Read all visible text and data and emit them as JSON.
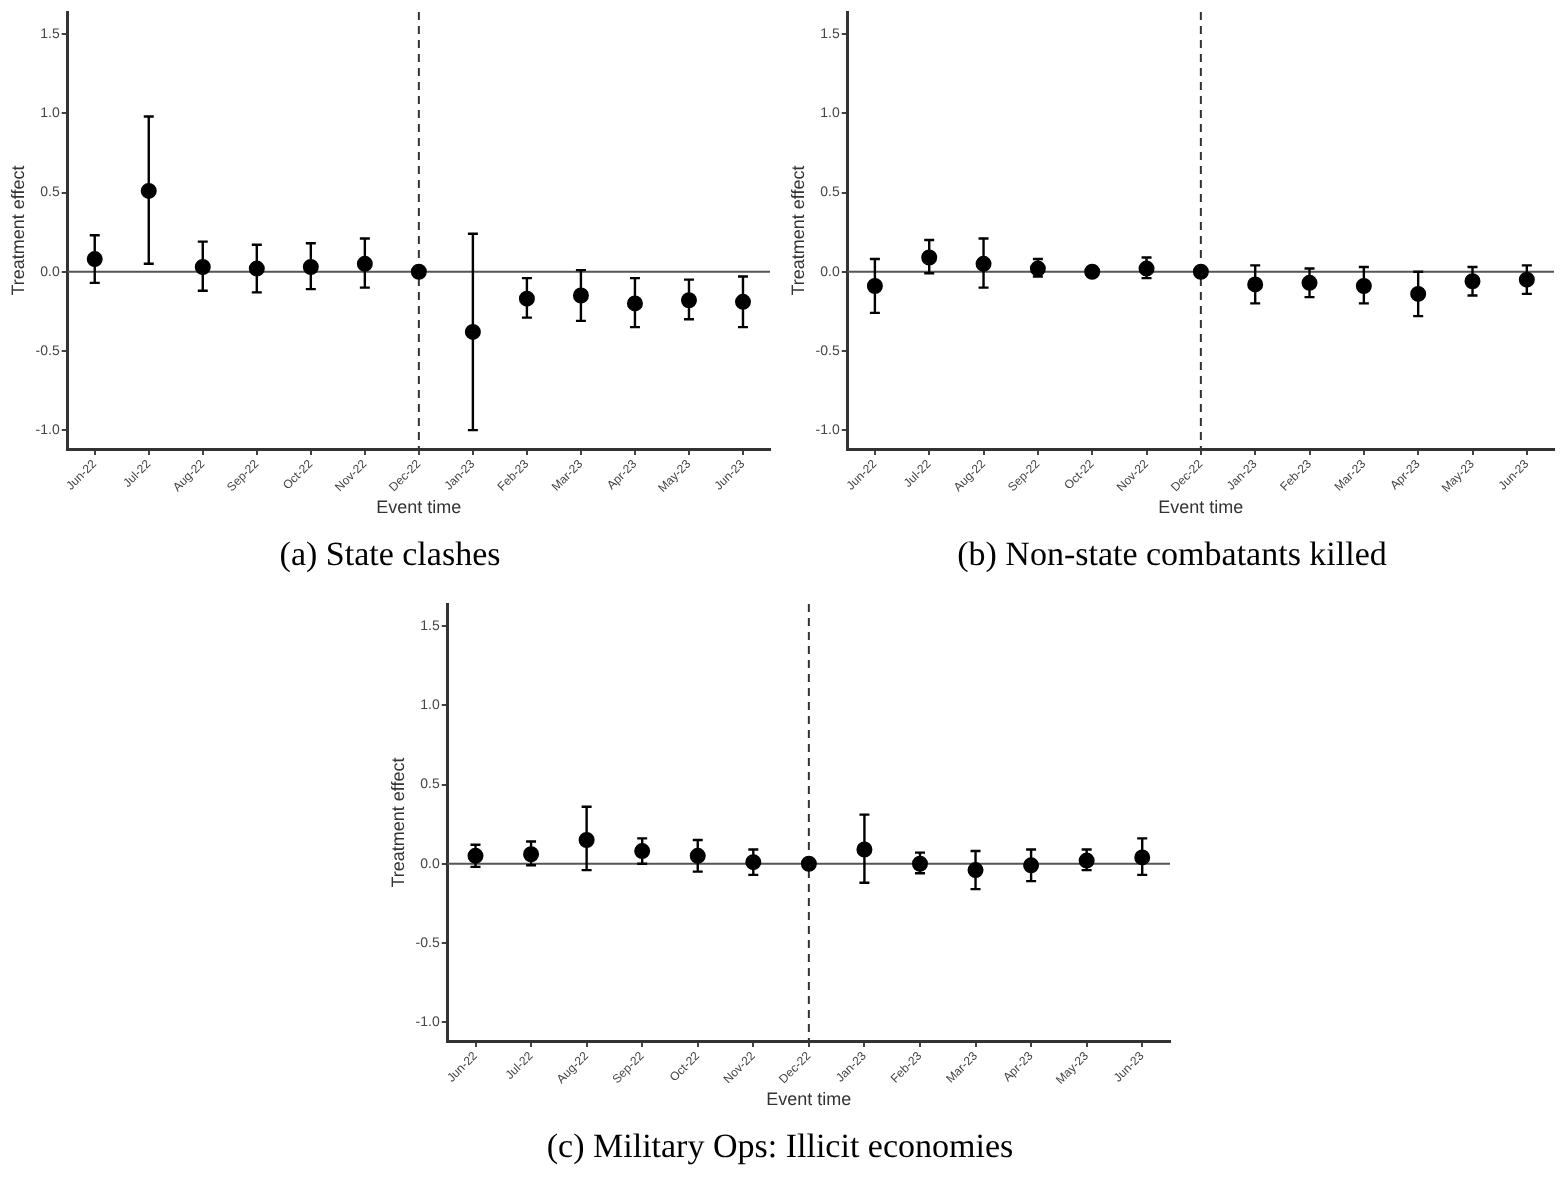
{
  "chart_data": [
    {
      "type": "scatter",
      "title": "(a) State clashes",
      "xlabel": "Event time",
      "ylabel": "Treatment effect",
      "categories": [
        "Jun-22",
        "Jul-22",
        "Aug-22",
        "Sep-22",
        "Oct-22",
        "Nov-22",
        "Dec-22",
        "Jan-23",
        "Feb-23",
        "Mar-23",
        "Apr-23",
        "May-23",
        "Jun-23"
      ],
      "series": [
        {
          "color": "#000000",
          "values": [
            0.08,
            0.51,
            0.03,
            0.02,
            0.03,
            0.05,
            0,
            -0.38,
            -0.17,
            -0.15,
            -0.2,
            -0.18,
            -0.19
          ],
          "errors": [
            [
              -0.07,
              0.23
            ],
            [
              0.05,
              0.98
            ],
            [
              -0.12,
              0.19
            ],
            [
              -0.13,
              0.17
            ],
            [
              -0.11,
              0.18
            ],
            [
              -0.1,
              0.21
            ],
            null,
            [
              -1.0,
              0.24
            ],
            [
              -0.29,
              -0.04
            ],
            [
              -0.31,
              0.01
            ],
            [
              -0.35,
              -0.04
            ],
            [
              -0.3,
              -0.05
            ],
            [
              -0.35,
              -0.03
            ]
          ]
        }
      ],
      "ylim": [
        -1.12,
        1.64
      ],
      "yticks": [
        {
          "value": -1,
          "label": "-1.0"
        },
        {
          "value": -0.5,
          "label": "-0.5"
        },
        {
          "value": 0,
          "label": "0.0"
        },
        {
          "value": 0.5,
          "label": "0.5"
        },
        {
          "value": 1,
          "label": "1.0"
        },
        {
          "value": 1.5,
          "label": "1.5"
        }
      ],
      "ref_lines": [
        {
          "axis": "y",
          "value": 0,
          "color": "#555555",
          "line_style": "solid"
        },
        {
          "axis": "x",
          "value": "Dec-22",
          "color": "#333333",
          "line_style": "dashed"
        }
      ],
      "marker": "circle",
      "grid": false,
      "legend": false
    },
    {
      "type": "scatter",
      "title": "(b) Non-state combatants killed",
      "xlabel": "Event time",
      "ylabel": "Treatment effect",
      "categories": [
        "Jun-22",
        "Jul-22",
        "Aug-22",
        "Sep-22",
        "Oct-22",
        "Nov-22",
        "Dec-22",
        "Jan-23",
        "Feb-23",
        "Mar-23",
        "Apr-23",
        "May-23",
        "Jun-23"
      ],
      "series": [
        {
          "color": "#000000",
          "values": [
            -0.09,
            0.09,
            0.05,
            0.02,
            0,
            0.02,
            0,
            -0.08,
            -0.07,
            -0.09,
            -0.14,
            -0.06,
            -0.05
          ],
          "errors": [
            [
              -0.26,
              0.08
            ],
            [
              -0.01,
              0.2
            ],
            [
              -0.1,
              0.21
            ],
            [
              -0.03,
              0.08
            ],
            null,
            [
              -0.04,
              0.09
            ],
            null,
            [
              -0.2,
              0.04
            ],
            [
              -0.16,
              0.02
            ],
            [
              -0.2,
              0.03
            ],
            [
              -0.28,
              0.0
            ],
            [
              -0.15,
              0.03
            ],
            [
              -0.14,
              0.04
            ]
          ]
        }
      ],
      "ylim": [
        -1.12,
        1.64
      ],
      "yticks": [
        {
          "value": -1,
          "label": "-1.0"
        },
        {
          "value": -0.5,
          "label": "-0.5"
        },
        {
          "value": 0,
          "label": "0.0"
        },
        {
          "value": 0.5,
          "label": "0.5"
        },
        {
          "value": 1,
          "label": "1.0"
        },
        {
          "value": 1.5,
          "label": "1.5"
        }
      ],
      "ref_lines": [
        {
          "axis": "y",
          "value": 0,
          "color": "#555555",
          "line_style": "solid"
        },
        {
          "axis": "x",
          "value": "Dec-22",
          "color": "#333333",
          "line_style": "dashed"
        }
      ],
      "marker": "circle",
      "grid": false,
      "legend": false
    },
    {
      "type": "scatter",
      "title": "(c) Military Ops: Illicit economies",
      "xlabel": "Event time",
      "ylabel": "Treatment effect",
      "categories": [
        "Jun-22",
        "Jul-22",
        "Aug-22",
        "Sep-22",
        "Oct-22",
        "Nov-22",
        "Dec-22",
        "Jan-23",
        "Feb-23",
        "Mar-23",
        "Apr-23",
        "May-23",
        "Jun-23"
      ],
      "series": [
        {
          "color": "#000000",
          "values": [
            0.05,
            0.06,
            0.15,
            0.08,
            0.05,
            0.01,
            0,
            0.09,
            0,
            -0.04,
            -0.01,
            0.02,
            0.04
          ],
          "errors": [
            [
              -0.02,
              0.12
            ],
            [
              -0.01,
              0.14
            ],
            [
              -0.04,
              0.36
            ],
            [
              0,
              0.16
            ],
            [
              -0.05,
              0.15
            ],
            [
              -0.07,
              0.09
            ],
            null,
            [
              -0.12,
              0.31
            ],
            [
              -0.06,
              0.07
            ],
            [
              -0.16,
              0.08
            ],
            [
              -0.11,
              0.09
            ],
            [
              -0.04,
              0.09
            ],
            [
              -0.07,
              0.16
            ]
          ]
        }
      ],
      "ylim": [
        -1.12,
        1.64
      ],
      "yticks": [
        {
          "value": -1,
          "label": "-1.0"
        },
        {
          "value": -0.5,
          "label": "-0.5"
        },
        {
          "value": 0,
          "label": "0.0"
        },
        {
          "value": 0.5,
          "label": "0.5"
        },
        {
          "value": 1,
          "label": "1.0"
        },
        {
          "value": 1.5,
          "label": "1.5"
        }
      ],
      "ref_lines": [
        {
          "axis": "y",
          "value": 0,
          "color": "#555555",
          "line_style": "solid"
        },
        {
          "axis": "x",
          "value": "Dec-22",
          "color": "#333333",
          "line_style": "dashed"
        }
      ],
      "marker": "circle",
      "grid": false,
      "legend": false
    }
  ]
}
